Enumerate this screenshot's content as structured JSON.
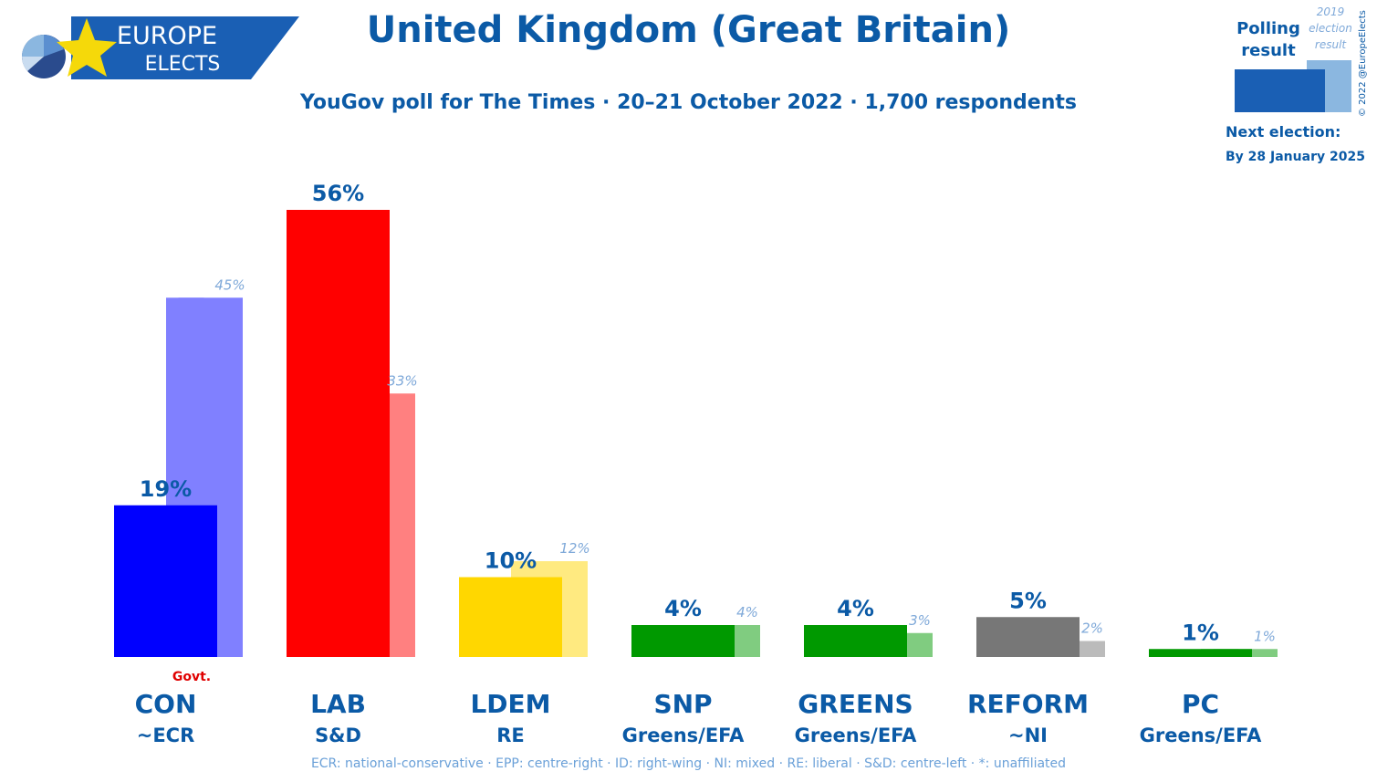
{
  "brand": {
    "line1": "EUROPE",
    "line2": "ELECTS",
    "band_color": "#1a5fb4",
    "star_color": "#f5d90a"
  },
  "title": "United Kingdom (Great Britain)",
  "subtitle": "YouGov poll for The Times · 20–21 October 2022 · 1,700 respondents",
  "legend": {
    "polling_label_1": "Polling",
    "polling_label_2": "result",
    "prev_label_1": "2019",
    "prev_label_2": "election",
    "prev_label_3": "result",
    "copyright": "© 2022 @EuropeElects",
    "next_election_label": "Next election:",
    "next_election_date": "By 28 January 2025"
  },
  "footnote": "ECR: national-conservative · EPP: centre-right · ID: right-wing · NI: mixed · RE: liberal · S&D: centre-left · *: unaffiliated",
  "chart_data": {
    "type": "bar",
    "title": "United Kingdom (Great Britain)",
    "ylim": [
      0,
      60
    ],
    "unit": "%",
    "categories": [
      "CON",
      "LAB",
      "LDEM",
      "SNP",
      "GREENS",
      "REFORM",
      "PC"
    ],
    "groups": [
      "~ECR",
      "S&D",
      "RE",
      "Greens/EFA",
      "Greens/EFA",
      "~NI",
      "Greens/EFA"
    ],
    "series": [
      {
        "name": "Polling result",
        "values": [
          19,
          56,
          10,
          4,
          4,
          5,
          1
        ],
        "labels": [
          "19%",
          "56%",
          "10%",
          "4%",
          "4%",
          "5%",
          "1%"
        ]
      },
      {
        "name": "2019 election result",
        "values": [
          45,
          33,
          12,
          4,
          3,
          2,
          1
        ],
        "labels": [
          "45%",
          "33%",
          "12%",
          "4%",
          "3%",
          "2%",
          "1%"
        ]
      }
    ],
    "colors": [
      "#0000ff",
      "#ff0000",
      "#ffd700",
      "#009900",
      "#009900",
      "#777777",
      "#009900"
    ],
    "prev_colors": [
      "#8080ff",
      "#ff8080",
      "#ffea80",
      "#80cc80",
      "#80cc80",
      "#bbbbbb",
      "#80cc80"
    ],
    "government": {
      "party": "CON",
      "label": "Govt."
    }
  }
}
